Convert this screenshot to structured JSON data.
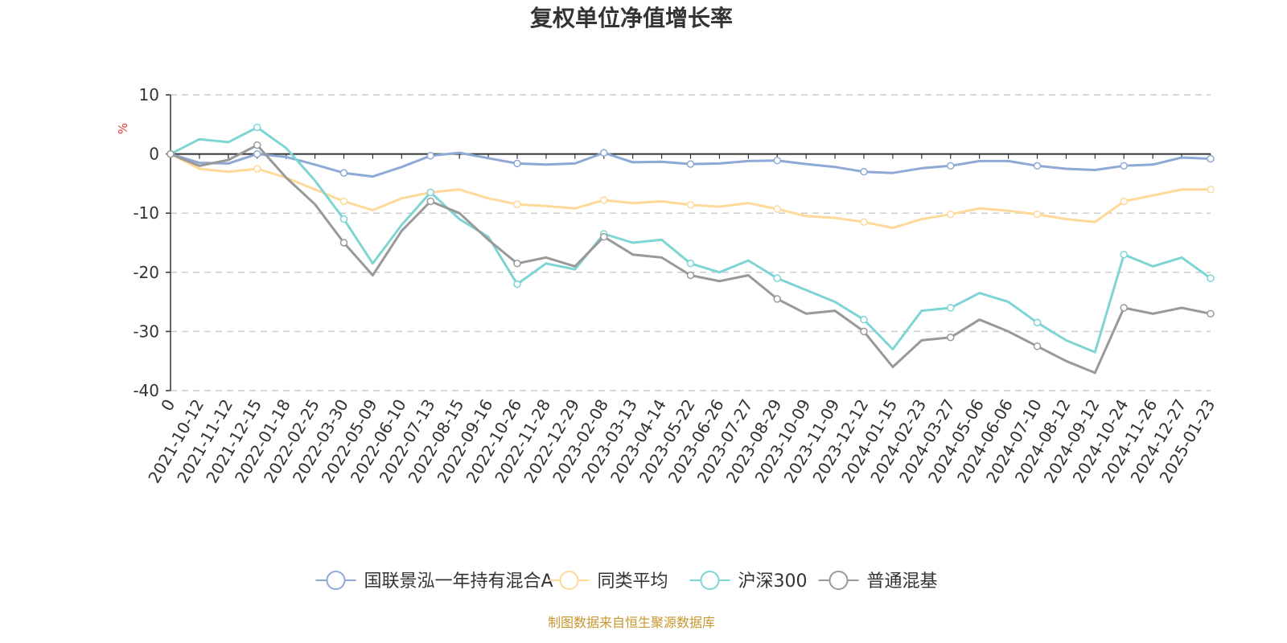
{
  "chart_data": {
    "type": "line",
    "title": "复权单位净值增长率",
    "ylabel": "%",
    "ylim": [
      -40,
      10
    ],
    "yticks": [
      10,
      0,
      -10,
      -20,
      -30,
      -40
    ],
    "x_tick_labels": [
      "0",
      "2021-10-12",
      "2021-11-12",
      "2021-12-15",
      "2022-01-18",
      "2022-02-25",
      "2022-03-30",
      "2022-05-09",
      "2022-06-10",
      "2022-07-13",
      "2022-08-15",
      "2022-09-16",
      "2022-10-26",
      "2022-11-28",
      "2022-12-29",
      "2023-02-08",
      "2023-03-13",
      "2023-04-14",
      "2023-05-22",
      "2023-06-26",
      "2023-07-27",
      "2023-08-29",
      "2023-10-09",
      "2023-11-09",
      "2023-12-12",
      "2024-01-15",
      "2024-02-23",
      "2024-03-27",
      "2024-05-06",
      "2024-06-06",
      "2024-07-10",
      "2024-08-12",
      "2024-09-12",
      "2024-10-24",
      "2024-11-26",
      "2024-12-27",
      "2025-01-23"
    ],
    "series": [
      {
        "name": "国联景泓一年持有混合A",
        "color": "#8ea9d6",
        "values": [
          0,
          -1.5,
          -1.6,
          0,
          -0.5,
          -1.8,
          -3.2,
          -3.8,
          -2.2,
          -0.3,
          0.2,
          -0.7,
          -1.6,
          -1.8,
          -1.6,
          0.2,
          -1.4,
          -1.3,
          -1.7,
          -1.6,
          -1.2,
          -1.1,
          -1.7,
          -2.2,
          -3.0,
          -3.2,
          -2.4,
          -2.0,
          -1.2,
          -1.2,
          -2.0,
          -2.5,
          -2.7,
          -2.0,
          -1.8,
          -0.6,
          -0.8
        ]
      },
      {
        "name": "同类平均",
        "color": "#ffd99a",
        "values": [
          0,
          -2.5,
          -3.0,
          -2.5,
          -4.0,
          -6.0,
          -8.0,
          -9.5,
          -7.5,
          -6.5,
          -6.0,
          -7.5,
          -8.5,
          -8.8,
          -9.2,
          -7.8,
          -8.3,
          -8.0,
          -8.6,
          -8.9,
          -8.3,
          -9.3,
          -10.5,
          -10.8,
          -11.5,
          -12.5,
          -11.0,
          -10.2,
          -9.2,
          -9.6,
          -10.2,
          -11.0,
          -11.5,
          -8.0,
          -7.0,
          -6.0,
          -6.0
        ]
      },
      {
        "name": "沪深300",
        "color": "#7fd4d4",
        "values": [
          0,
          2.5,
          2.0,
          4.5,
          1.0,
          -4.5,
          -11.0,
          -18.5,
          -12.0,
          -6.5,
          -11.0,
          -14.0,
          -22.0,
          -18.5,
          -19.5,
          -13.5,
          -15.0,
          -14.5,
          -18.5,
          -20.0,
          -18.0,
          -21.0,
          -23.0,
          -25.0,
          -28.0,
          -33.0,
          -26.5,
          -26.0,
          -23.5,
          -25.0,
          -28.5,
          -31.5,
          -33.5,
          -17.0,
          -19.0,
          -17.5,
          -21.0
        ]
      },
      {
        "name": "普通混基",
        "color": "#999999",
        "values": [
          0,
          -2.0,
          -1.0,
          1.5,
          -4.0,
          -8.5,
          -15.0,
          -20.5,
          -13.0,
          -8.0,
          -10.0,
          -14.5,
          -18.5,
          -17.5,
          -19.0,
          -14.0,
          -17.0,
          -17.5,
          -20.5,
          -21.5,
          -20.5,
          -24.5,
          -27.0,
          -26.5,
          -30.0,
          -36.0,
          -31.5,
          -31.0,
          -28.0,
          -30.0,
          -32.5,
          -35.0,
          -37.0,
          -26.0,
          -27.0,
          -26.0,
          -27.0
        ]
      }
    ],
    "legend_position": "bottom",
    "source": "制图数据来自恒生聚源数据库"
  }
}
